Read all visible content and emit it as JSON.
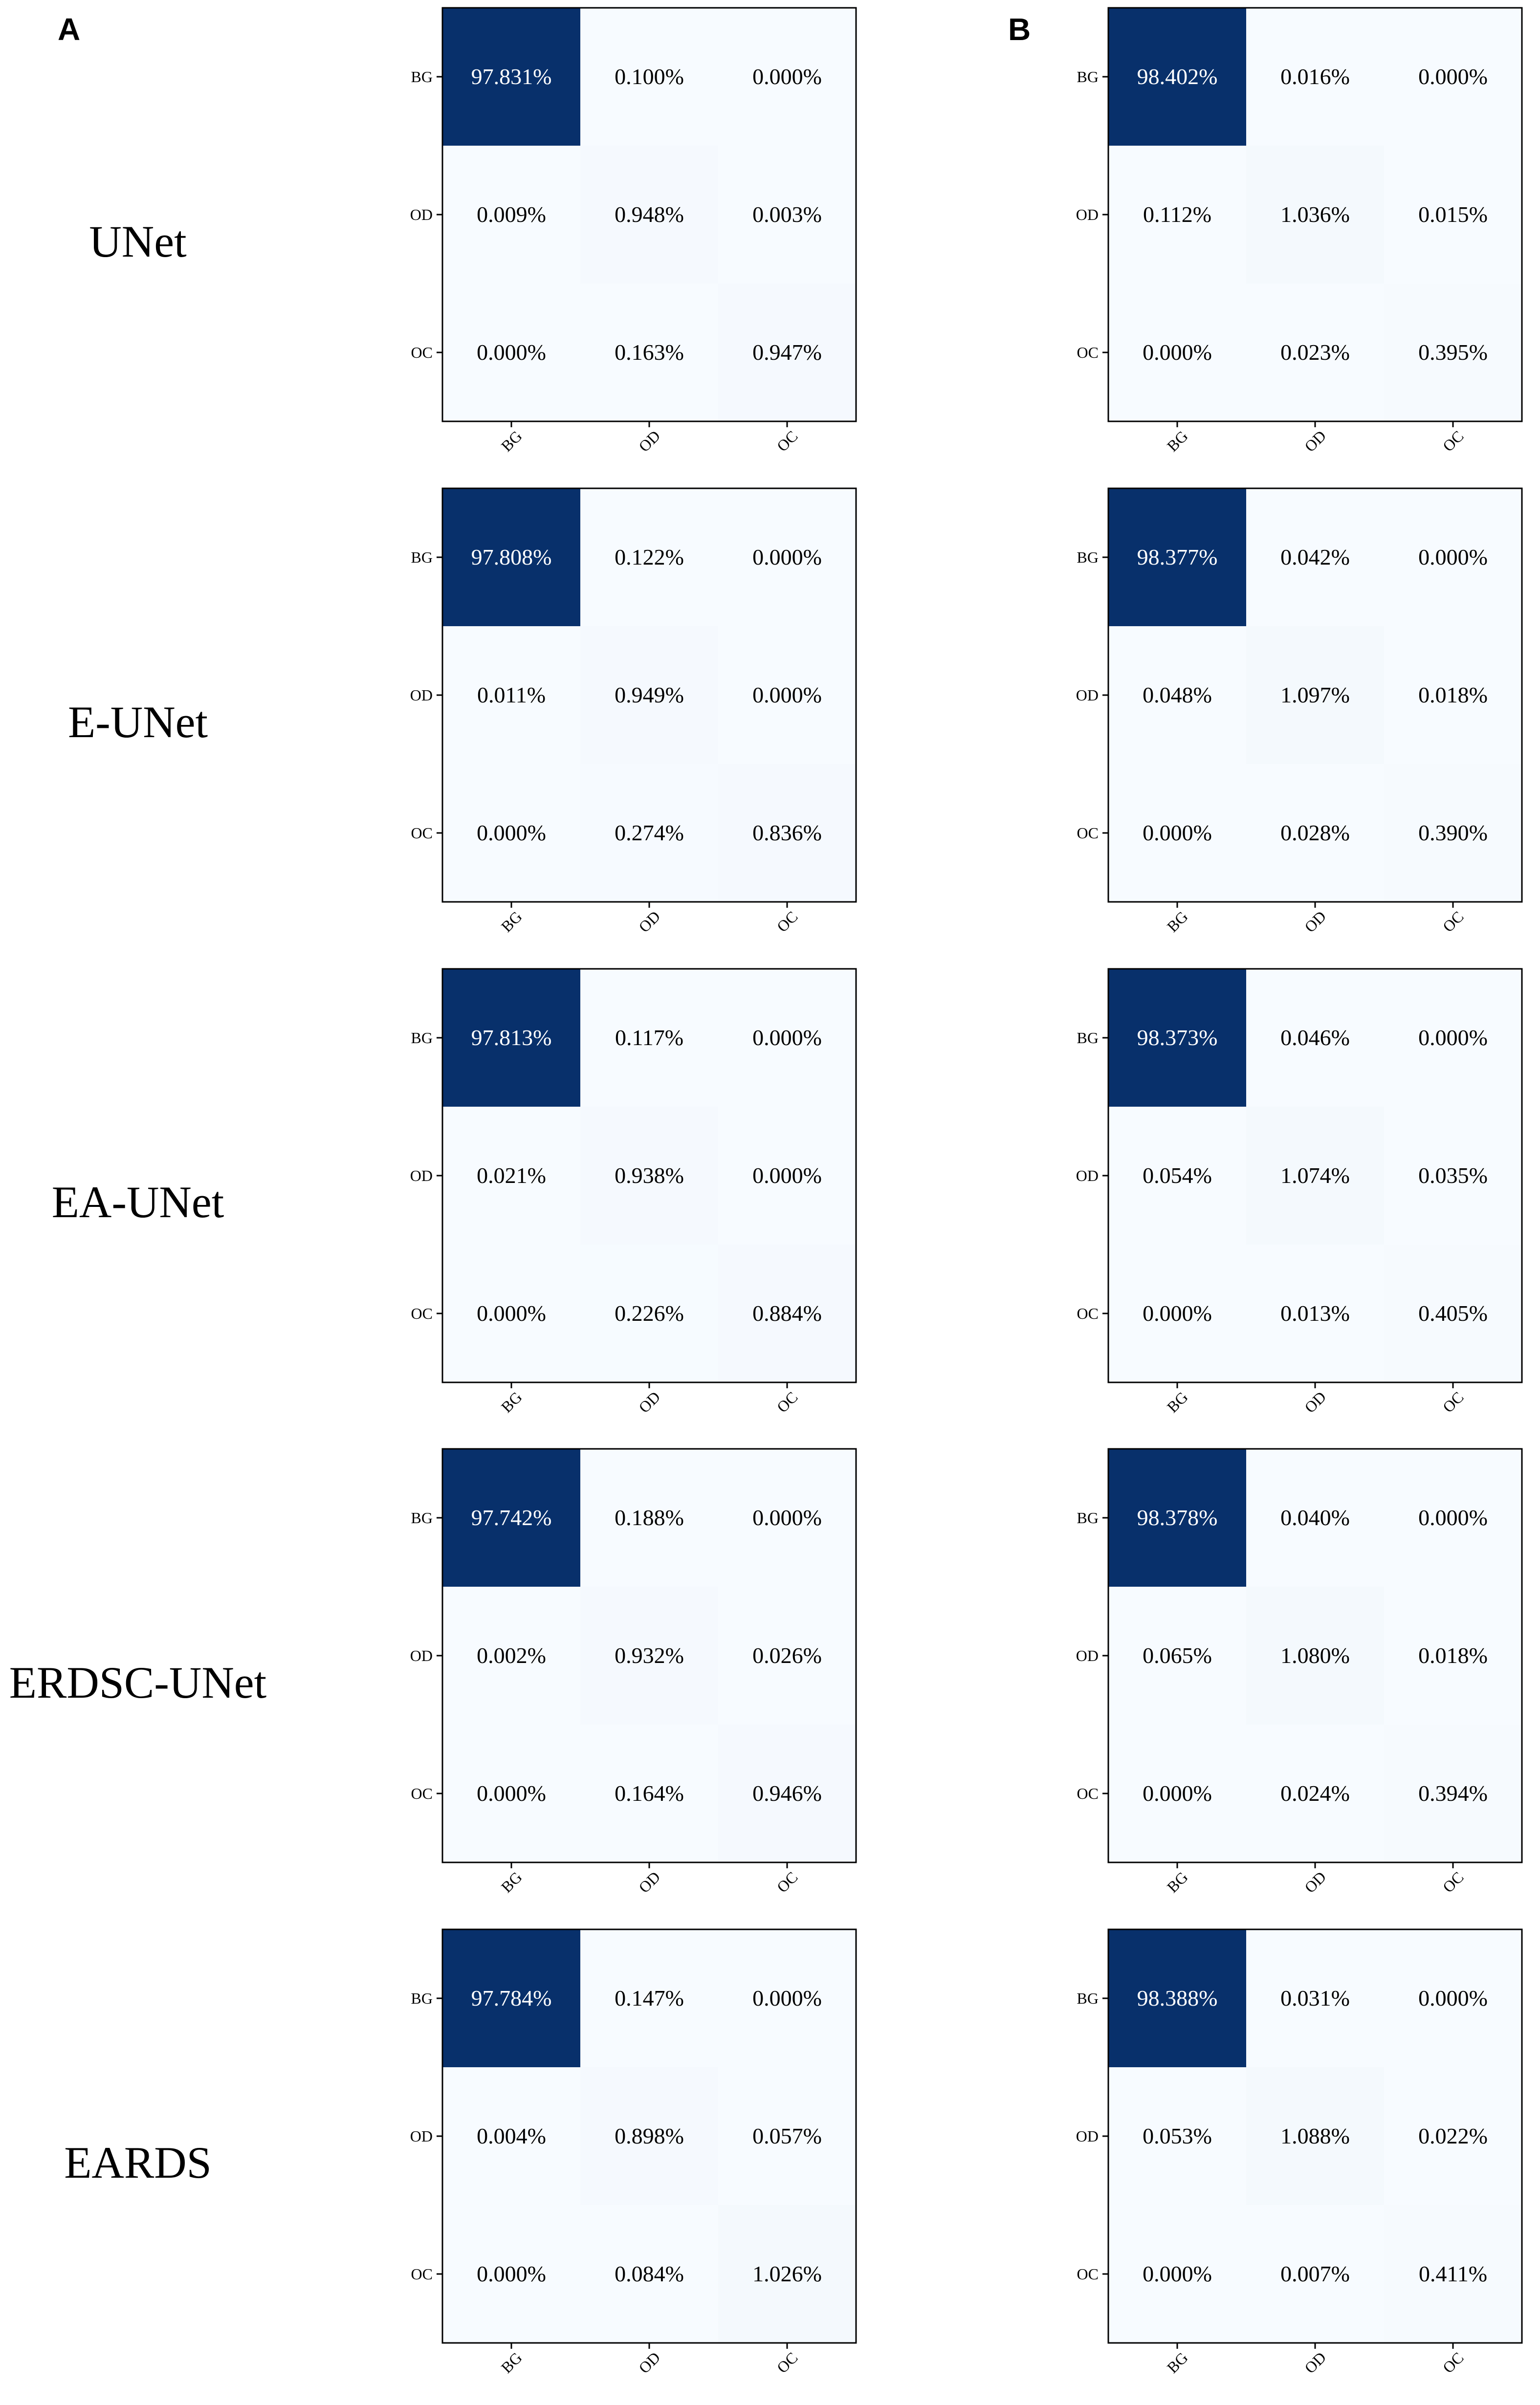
{
  "panels": [
    "A",
    "B"
  ],
  "models": [
    "UNet",
    "E-UNet",
    "EA-UNet",
    "ERDSC-UNet",
    "EARDS"
  ],
  "colors": {
    "max": "#08306b",
    "min": "#f7fbff",
    "text_on_dark": "#ffffff",
    "text_on_light": "#000000",
    "frame": "#000000"
  },
  "chart_data": {
    "type": "heatmap",
    "categories": [
      "BG",
      "OD",
      "OC"
    ],
    "unit": "%",
    "matrices": [
      {
        "panel": "A",
        "model": "UNet",
        "values": [
          [
            97.831,
            0.1,
            0.0
          ],
          [
            0.009,
            0.948,
            0.003
          ],
          [
            0.0,
            0.163,
            0.947
          ]
        ]
      },
      {
        "panel": "B",
        "model": "UNet",
        "values": [
          [
            98.402,
            0.016,
            0.0
          ],
          [
            0.112,
            1.036,
            0.015
          ],
          [
            0.0,
            0.023,
            0.395
          ]
        ]
      },
      {
        "panel": "A",
        "model": "E-UNet",
        "values": [
          [
            97.808,
            0.122,
            0.0
          ],
          [
            0.011,
            0.949,
            0.0
          ],
          [
            0.0,
            0.274,
            0.836
          ]
        ]
      },
      {
        "panel": "B",
        "model": "E-UNet",
        "values": [
          [
            98.377,
            0.042,
            0.0
          ],
          [
            0.048,
            1.097,
            0.018
          ],
          [
            0.0,
            0.028,
            0.39
          ]
        ]
      },
      {
        "panel": "A",
        "model": "EA-UNet",
        "values": [
          [
            97.813,
            0.117,
            0.0
          ],
          [
            0.021,
            0.938,
            0.0
          ],
          [
            0.0,
            0.226,
            0.884
          ]
        ]
      },
      {
        "panel": "B",
        "model": "EA-UNet",
        "values": [
          [
            98.373,
            0.046,
            0.0
          ],
          [
            0.054,
            1.074,
            0.035
          ],
          [
            0.0,
            0.013,
            0.405
          ]
        ]
      },
      {
        "panel": "A",
        "model": "ERDSC-UNet",
        "values": [
          [
            97.742,
            0.188,
            0.0
          ],
          [
            0.002,
            0.932,
            0.026
          ],
          [
            0.0,
            0.164,
            0.946
          ]
        ]
      },
      {
        "panel": "B",
        "model": "ERDSC-UNet",
        "values": [
          [
            98.378,
            0.04,
            0.0
          ],
          [
            0.065,
            1.08,
            0.018
          ],
          [
            0.0,
            0.024,
            0.394
          ]
        ]
      },
      {
        "panel": "A",
        "model": "EARDS",
        "values": [
          [
            97.784,
            0.147,
            0.0
          ],
          [
            0.004,
            0.898,
            0.057
          ],
          [
            0.0,
            0.084,
            1.026
          ]
        ]
      },
      {
        "panel": "B",
        "model": "EARDS",
        "values": [
          [
            98.388,
            0.031,
            0.0
          ],
          [
            0.053,
            1.088,
            0.022
          ],
          [
            0.0,
            0.007,
            0.411
          ]
        ]
      }
    ]
  }
}
